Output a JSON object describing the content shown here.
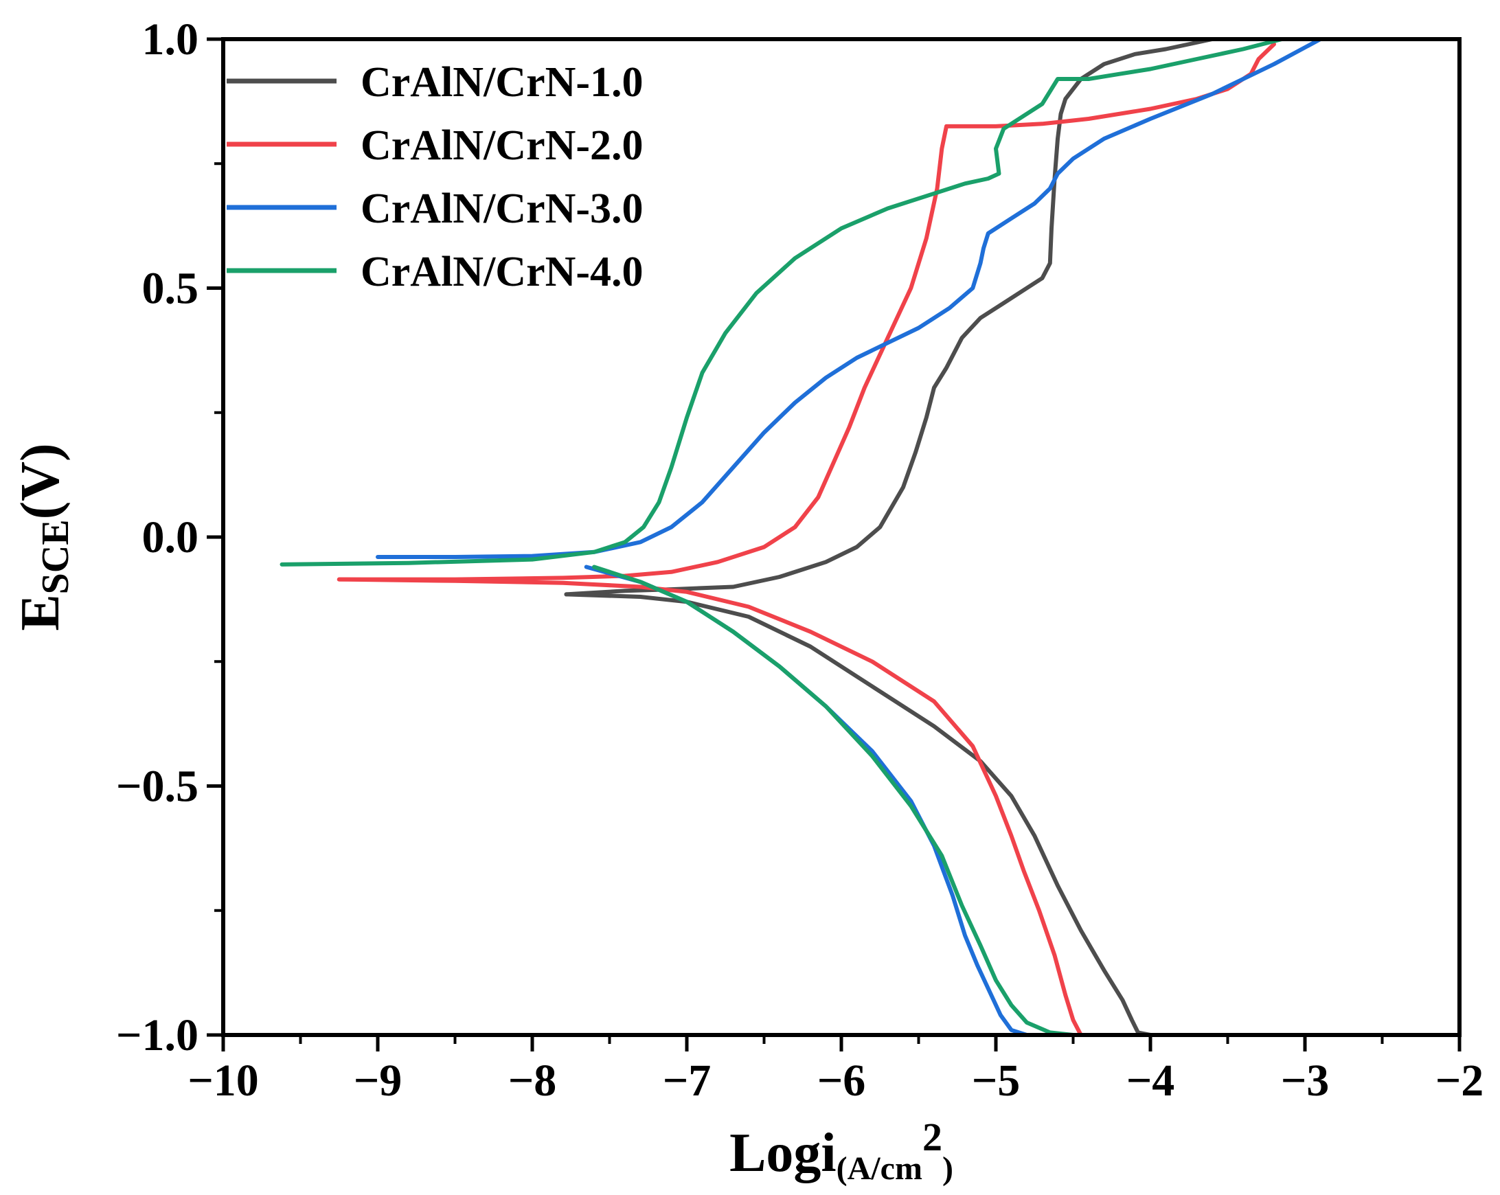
{
  "chart_data": {
    "type": "line",
    "title": "",
    "xlabel": "Logi(A/cm2)",
    "xlabel_parts": {
      "main": "Logi",
      "sub": "(A/cm",
      "sup": "2",
      "close": ")"
    },
    "ylabel": "ESCE(V)",
    "ylabel_parts": {
      "main": "E",
      "sub": "SCE",
      "rest": "(V)"
    },
    "xlim": [
      -10,
      -2
    ],
    "ylim": [
      -1.0,
      1.0
    ],
    "xticks": [
      -10,
      -9,
      -8,
      -7,
      -6,
      -5,
      -4,
      -3,
      -2
    ],
    "xtick_labels": [
      "−10",
      "−9",
      "−8",
      "−7",
      "−6",
      "−5",
      "−4",
      "−3",
      "−2"
    ],
    "yticks": [
      -1.0,
      -0.5,
      0.0,
      0.5,
      1.0
    ],
    "ytick_labels": [
      "−1.0",
      "−0.5",
      "0.0",
      "0.5",
      "1.0"
    ],
    "grid": false,
    "legend_position": "top-left",
    "series": [
      {
        "name": "CrAlN/CrN-1.0",
        "color": "#4d4d4d",
        "x": [
          -7.78,
          -7.4,
          -7.1,
          -6.7,
          -6.4,
          -6.1,
          -5.9,
          -5.75,
          -5.6,
          -5.52,
          -5.45,
          -5.4,
          -5.32,
          -5.22,
          -5.1,
          -4.95,
          -4.8,
          -4.7,
          -4.65,
          -4.64,
          -4.62,
          -4.6,
          -4.58,
          -4.55,
          -4.45,
          -4.3,
          -4.1,
          -3.9,
          -3.6
        ],
        "y": [
          -0.115,
          -0.108,
          -0.105,
          -0.1,
          -0.08,
          -0.05,
          -0.02,
          0.02,
          0.1,
          0.17,
          0.24,
          0.3,
          0.34,
          0.4,
          0.44,
          0.47,
          0.5,
          0.52,
          0.55,
          0.62,
          0.72,
          0.8,
          0.85,
          0.88,
          0.92,
          0.95,
          0.97,
          0.98,
          1.0
        ]
      },
      {
        "name": "CrAlN/CrN-2.0",
        "color": "#f0424a",
        "x": [
          -9.25,
          -8.5,
          -7.8,
          -7.4,
          -7.1,
          -6.8,
          -6.5,
          -6.3,
          -6.15,
          -6.05,
          -5.95,
          -5.85,
          -5.7,
          -5.55,
          -5.45,
          -5.38,
          -5.35,
          -5.32,
          -5.0,
          -4.7,
          -4.4,
          -4.0,
          -3.7,
          -3.5,
          -3.35,
          -3.3,
          -3.2
        ],
        "y": [
          -0.085,
          -0.085,
          -0.082,
          -0.078,
          -0.07,
          -0.05,
          -0.02,
          0.02,
          0.08,
          0.15,
          0.22,
          0.3,
          0.4,
          0.5,
          0.6,
          0.7,
          0.78,
          0.825,
          0.825,
          0.83,
          0.84,
          0.86,
          0.88,
          0.9,
          0.93,
          0.96,
          0.99
        ]
      },
      {
        "name": "CrAlN/CrN-3.0",
        "color": "#1f6fd8",
        "x": [
          -9.0,
          -8.5,
          -8.0,
          -7.6,
          -7.3,
          -7.1,
          -6.9,
          -6.7,
          -6.5,
          -6.3,
          -6.1,
          -5.9,
          -5.7,
          -5.5,
          -5.3,
          -5.15,
          -5.1,
          -5.08,
          -5.05,
          -4.9,
          -4.75,
          -4.65,
          -4.6,
          -4.5,
          -4.3,
          -4.0,
          -3.6,
          -3.2,
          -2.9
        ],
        "y": [
          -0.04,
          -0.04,
          -0.038,
          -0.03,
          -0.01,
          0.02,
          0.07,
          0.14,
          0.21,
          0.27,
          0.32,
          0.36,
          0.39,
          0.42,
          0.46,
          0.5,
          0.55,
          0.58,
          0.61,
          0.64,
          0.67,
          0.7,
          0.73,
          0.76,
          0.8,
          0.84,
          0.89,
          0.95,
          1.0
        ]
      },
      {
        "name": "CrAlN/CrN-4.0",
        "color": "#1aa06a",
        "x": [
          -9.62,
          -8.8,
          -8.0,
          -7.6,
          -7.4,
          -7.28,
          -7.18,
          -7.1,
          -7.0,
          -6.9,
          -6.75,
          -6.55,
          -6.3,
          -6.0,
          -5.7,
          -5.4,
          -5.2,
          -5.05,
          -4.98,
          -5.0,
          -4.95,
          -4.85,
          -4.7,
          -4.6,
          -4.4,
          -4.2,
          -4.0,
          -3.7,
          -3.4,
          -3.15
        ],
        "y": [
          -0.055,
          -0.052,
          -0.045,
          -0.03,
          -0.01,
          0.02,
          0.07,
          0.14,
          0.24,
          0.33,
          0.41,
          0.49,
          0.56,
          0.62,
          0.66,
          0.69,
          0.71,
          0.72,
          0.73,
          0.78,
          0.82,
          0.84,
          0.87,
          0.92,
          0.92,
          0.93,
          0.94,
          0.96,
          0.98,
          1.0
        ]
      }
    ],
    "cathodic_series": [
      {
        "name": "CrAlN/CrN-1.0",
        "x": [
          -7.78,
          -7.3,
          -7.0,
          -6.6,
          -6.2,
          -5.8,
          -5.4,
          -5.1,
          -4.9,
          -4.75,
          -4.6,
          -4.45,
          -4.3,
          -4.18,
          -4.12,
          -4.08,
          -4.0,
          -3.85
        ],
        "y": [
          -0.115,
          -0.12,
          -0.13,
          -0.16,
          -0.22,
          -0.3,
          -0.38,
          -0.45,
          -0.52,
          -0.6,
          -0.7,
          -0.79,
          -0.87,
          -0.93,
          -0.97,
          -0.995,
          -1.0,
          -1.0
        ]
      },
      {
        "name": "CrAlN/CrN-2.0",
        "x": [
          -9.25,
          -8.5,
          -7.8,
          -7.3,
          -7.0,
          -6.6,
          -6.2,
          -5.8,
          -5.4,
          -5.15,
          -5.0,
          -4.9,
          -4.82,
          -4.72,
          -4.62,
          -4.55,
          -4.5,
          -4.45
        ],
        "y": [
          -0.085,
          -0.088,
          -0.092,
          -0.1,
          -0.11,
          -0.14,
          -0.19,
          -0.25,
          -0.33,
          -0.42,
          -0.52,
          -0.6,
          -0.67,
          -0.75,
          -0.84,
          -0.92,
          -0.97,
          -1.0
        ]
      },
      {
        "name": "CrAlN/CrN-3.0",
        "x": [
          -7.65,
          -7.3,
          -7.0,
          -6.7,
          -6.4,
          -6.1,
          -5.8,
          -5.55,
          -5.4,
          -5.28,
          -5.2,
          -5.12,
          -5.03,
          -4.97,
          -4.9,
          -4.8,
          -4.6
        ],
        "y": [
          -0.06,
          -0.09,
          -0.13,
          -0.19,
          -0.26,
          -0.34,
          -0.43,
          -0.53,
          -0.62,
          -0.72,
          -0.8,
          -0.86,
          -0.92,
          -0.96,
          -0.99,
          -1.0,
          -1.0
        ]
      },
      {
        "name": "CrAlN/CrN-4.0",
        "x": [
          -7.6,
          -7.3,
          -7.0,
          -6.7,
          -6.4,
          -6.1,
          -5.8,
          -5.55,
          -5.35,
          -5.22,
          -5.1,
          -5.0,
          -4.9,
          -4.8,
          -4.65,
          -4.5
        ],
        "y": [
          -0.06,
          -0.09,
          -0.13,
          -0.19,
          -0.26,
          -0.34,
          -0.44,
          -0.54,
          -0.64,
          -0.74,
          -0.82,
          -0.89,
          -0.94,
          -0.975,
          -0.995,
          -1.0
        ]
      }
    ]
  }
}
